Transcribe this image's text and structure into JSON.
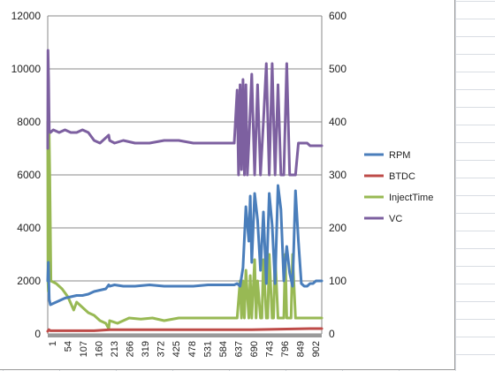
{
  "chart_data": {
    "type": "line",
    "title": "",
    "xlabel": "",
    "ylabel": "",
    "y2label": "",
    "ylim": [
      0,
      12000
    ],
    "y2lim": [
      0,
      600
    ],
    "yticks": [
      0,
      2000,
      4000,
      6000,
      8000,
      10000,
      12000
    ],
    "y2ticks": [
      0,
      100,
      200,
      300,
      400,
      500,
      600
    ],
    "xlim": [
      1,
      940
    ],
    "x_tick_labels": [
      "1",
      "54",
      "107",
      "160",
      "213",
      "266",
      "319",
      "372",
      "425",
      "478",
      "531",
      "584",
      "637",
      "690",
      "743",
      "796",
      "849",
      "902"
    ],
    "grid": "horizontal",
    "legend_position": "right",
    "colors": {
      "RPM": "#4a7ebb",
      "BTDC": "#be4b48",
      "InjectTime": "#98b954",
      "VC": "#7d60a0"
    },
    "series": [
      {
        "name": "RPM",
        "axis": "primary",
        "x": [
          1,
          3,
          6,
          10,
          20,
          40,
          60,
          80,
          100,
          120,
          140,
          160,
          180,
          200,
          210,
          213,
          230,
          260,
          300,
          350,
          400,
          450,
          500,
          550,
          600,
          640,
          650,
          660,
          670,
          680,
          690,
          695,
          700,
          710,
          720,
          730,
          740,
          750,
          760,
          770,
          780,
          790,
          800,
          810,
          820,
          830,
          840,
          850,
          860,
          870,
          880,
          890,
          900,
          910,
          920,
          930,
          940
        ],
        "y": [
          2000,
          2700,
          1300,
          1100,
          1150,
          1250,
          1350,
          1400,
          1450,
          1450,
          1500,
          1600,
          1650,
          1700,
          1850,
          1800,
          1850,
          1800,
          1800,
          1850,
          1800,
          1800,
          1800,
          1850,
          1850,
          1850,
          1900,
          1800,
          2500,
          4800,
          3500,
          5200,
          2700,
          5300,
          4300,
          2400,
          4600,
          1900,
          5300,
          4100,
          1900,
          5600,
          4700,
          2000,
          3300,
          2300,
          1800,
          5400,
          3500,
          1900,
          1800,
          1800,
          1900,
          1900,
          2000,
          2000,
          2000
        ]
      },
      {
        "name": "BTDC",
        "axis": "secondary",
        "x": [
          1,
          5,
          10,
          60,
          110,
          160,
          213,
          300,
          400,
          500,
          600,
          700,
          800,
          900,
          940
        ],
        "y": [
          5,
          8,
          6,
          6,
          6,
          6,
          8,
          8,
          8,
          8,
          8,
          8,
          9,
          10,
          10
        ]
      },
      {
        "name": "InjectTime",
        "axis": "secondary",
        "x": [
          1,
          2,
          3,
          5,
          8,
          12,
          30,
          50,
          70,
          90,
          100,
          120,
          140,
          160,
          180,
          200,
          210,
          213,
          240,
          280,
          320,
          360,
          400,
          450,
          500,
          550,
          600,
          640,
          650,
          660,
          665,
          670,
          675,
          680,
          690,
          695,
          700,
          710,
          715,
          720,
          730,
          735,
          740,
          750,
          755,
          760,
          770,
          775,
          780,
          790,
          800,
          810,
          815,
          820,
          830,
          835,
          840,
          850,
          855,
          860,
          870,
          880,
          900,
          940
        ],
        "y": [
          400,
          100,
          80,
          410,
          300,
          100,
          95,
          85,
          70,
          45,
          60,
          50,
          40,
          35,
          25,
          20,
          10,
          25,
          20,
          30,
          28,
          30,
          25,
          30,
          30,
          30,
          30,
          30,
          30,
          100,
          30,
          100,
          30,
          120,
          30,
          110,
          30,
          140,
          30,
          100,
          30,
          30,
          140,
          30,
          30,
          150,
          30,
          30,
          150,
          30,
          30,
          30,
          150,
          30,
          30,
          30,
          150,
          30,
          30,
          30,
          30,
          30,
          30,
          30
        ]
      },
      {
        "name": "VC",
        "axis": "secondary",
        "x": [
          1,
          2,
          4,
          6,
          10,
          20,
          40,
          60,
          80,
          100,
          120,
          140,
          160,
          180,
          200,
          210,
          213,
          230,
          260,
          300,
          350,
          400,
          450,
          500,
          550,
          600,
          640,
          650,
          655,
          660,
          665,
          670,
          675,
          680,
          685,
          690,
          700,
          710,
          720,
          730,
          740,
          750,
          760,
          770,
          780,
          790,
          800,
          810,
          820,
          830,
          840,
          850,
          860,
          870,
          880,
          890,
          900,
          940
        ],
        "y": [
          350,
          535,
          480,
          385,
          380,
          385,
          380,
          385,
          380,
          380,
          385,
          380,
          365,
          360,
          370,
          375,
          365,
          360,
          365,
          360,
          360,
          365,
          365,
          360,
          360,
          360,
          360,
          460,
          300,
          470,
          310,
          480,
          300,
          470,
          300,
          360,
          490,
          300,
          470,
          300,
          400,
          510,
          300,
          510,
          300,
          470,
          300,
          300,
          510,
          300,
          300,
          300,
          360,
          360,
          360,
          360,
          355,
          355
        ]
      }
    ]
  }
}
